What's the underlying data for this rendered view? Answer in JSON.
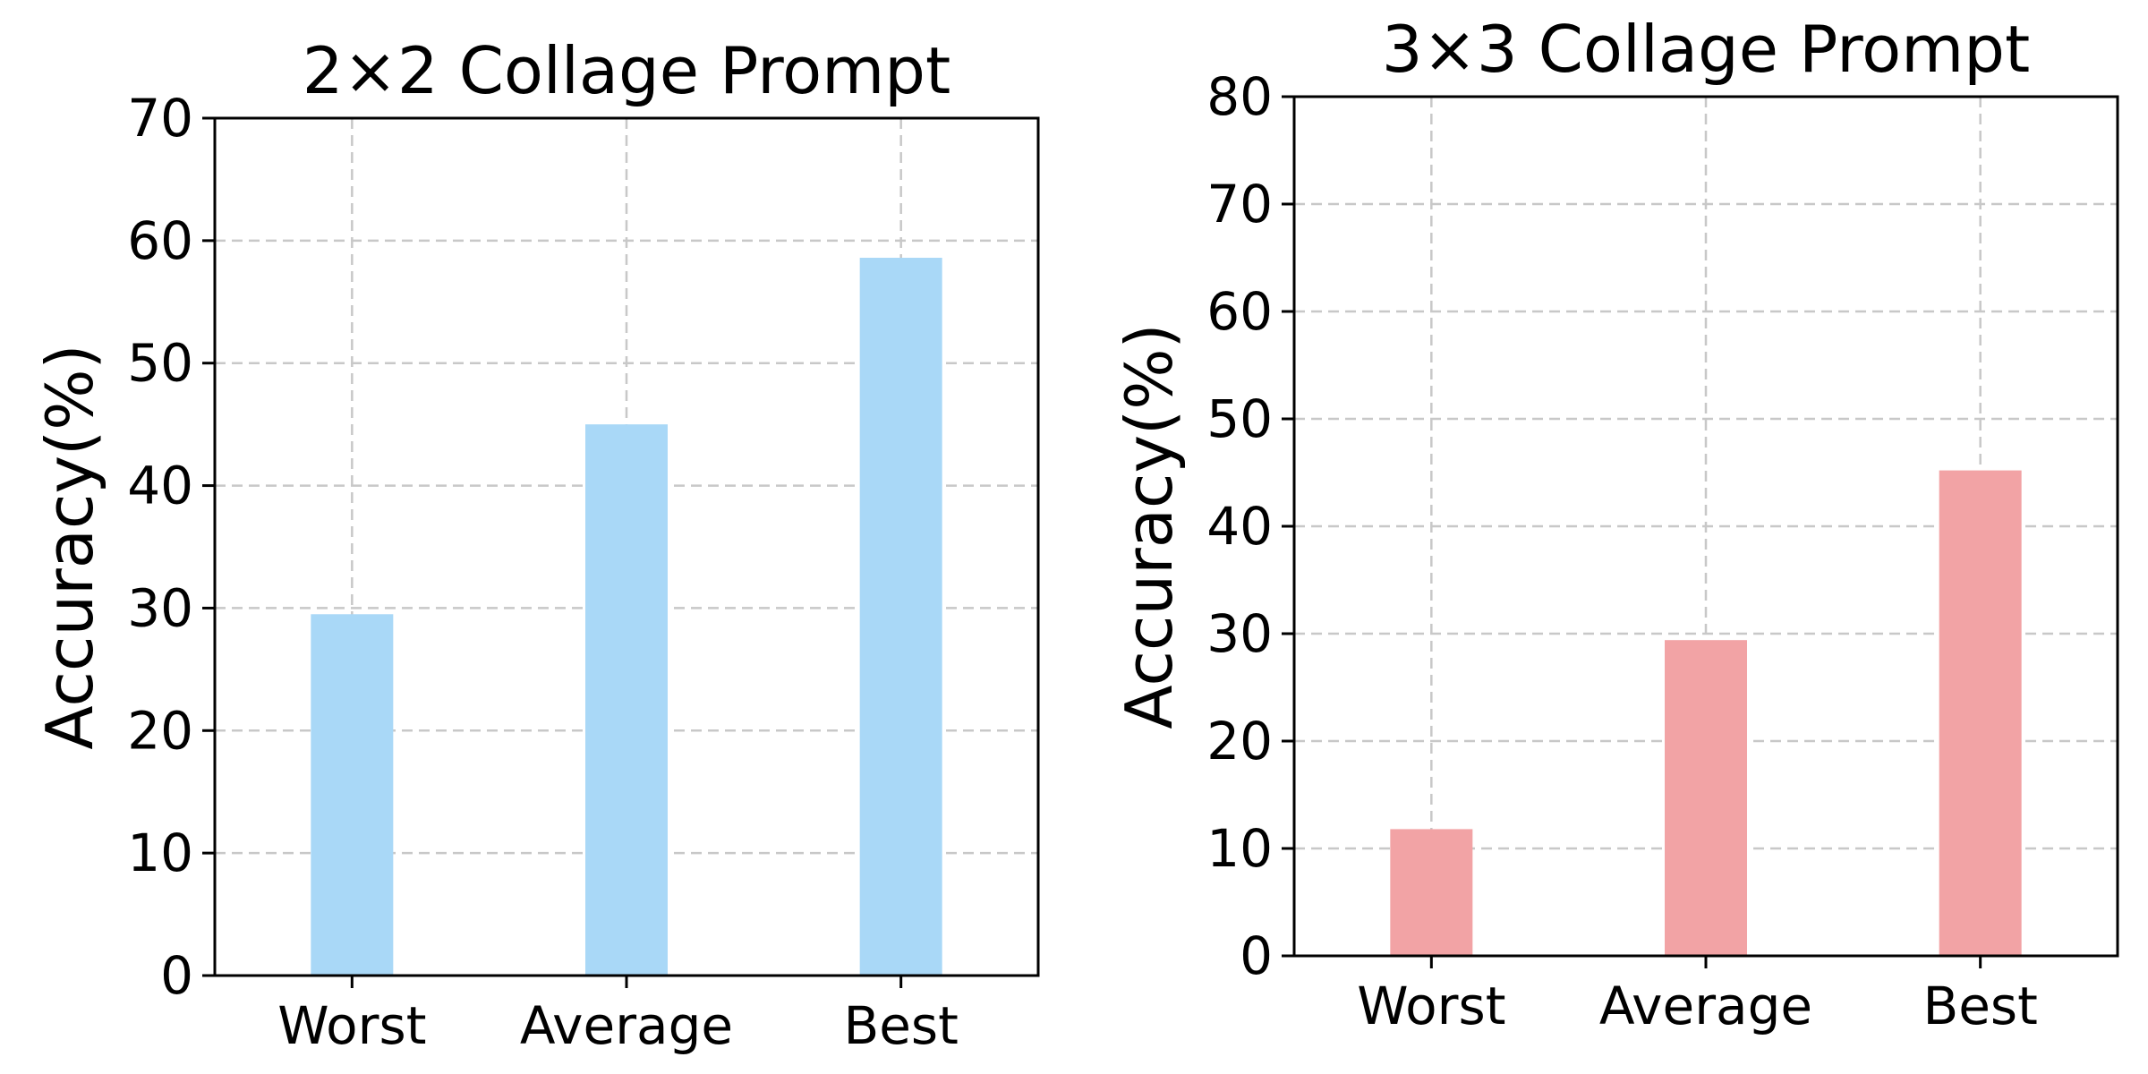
{
  "chart_data": [
    {
      "type": "bar",
      "title": "2×2 Collage Prompt",
      "xlabel": "",
      "ylabel": "Accuracy(%)",
      "categories": [
        "Worst",
        "Average",
        "Best"
      ],
      "values": [
        29.5,
        45.0,
        58.6
      ],
      "ylim": [
        0,
        70
      ],
      "yticks": [
        0,
        10,
        20,
        30,
        40,
        50,
        60,
        70
      ],
      "grid": true,
      "bar_color": "#a9d8f7"
    },
    {
      "type": "bar",
      "title": "3×3 Collage Prompt",
      "xlabel": "",
      "ylabel": "Accuracy(%)",
      "categories": [
        "Worst",
        "Average",
        "Best"
      ],
      "values": [
        11.8,
        29.4,
        45.2
      ],
      "ylim": [
        0,
        80
      ],
      "yticks": [
        0,
        10,
        20,
        30,
        40,
        50,
        60,
        70,
        80
      ],
      "grid": true,
      "bar_color": "#f2a3a5"
    }
  ]
}
